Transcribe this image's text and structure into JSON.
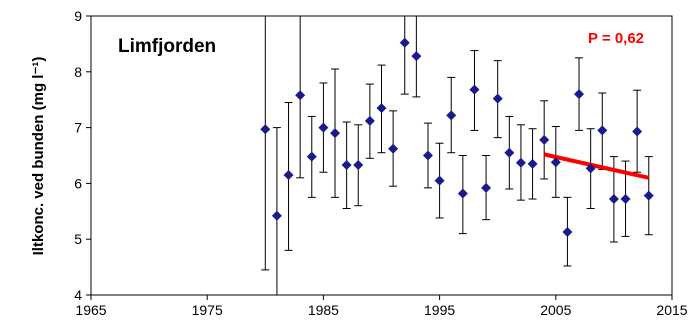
{
  "chart_data": {
    "type": "scatter",
    "title": "Limfjorden",
    "ylabel": "Iltkonc. ved bunden (mg l⁻¹)",
    "xlabel": "",
    "xlim": [
      1965,
      2015
    ],
    "ylim": [
      4,
      9
    ],
    "x_ticks": [
      "1965",
      "1975",
      "1985",
      "1995",
      "2005",
      "2015"
    ],
    "y_ticks": [
      "4",
      "5",
      "6",
      "7",
      "8",
      "9"
    ],
    "grid": false,
    "annotation": "P = 0,62",
    "colors": {
      "marker": "#1a1a8c",
      "trend": "#ff0000",
      "annotation": "#ff0000",
      "axis": "#000000"
    },
    "series": [
      {
        "marker": "diamond",
        "points": [
          {
            "x": 1980,
            "y": 6.97,
            "low": 4.45,
            "high": 9.0
          },
          {
            "x": 1981,
            "y": 5.42,
            "low": 4.0,
            "high": 7.0
          },
          {
            "x": 1982,
            "y": 6.15,
            "low": 4.8,
            "high": 7.45
          },
          {
            "x": 1983,
            "y": 7.58,
            "low": 6.1,
            "high": 9.0
          },
          {
            "x": 1984,
            "y": 6.48,
            "low": 5.75,
            "high": 7.2
          },
          {
            "x": 1985,
            "y": 7.0,
            "low": 6.2,
            "high": 7.8
          },
          {
            "x": 1986,
            "y": 6.9,
            "low": 5.75,
            "high": 8.05
          },
          {
            "x": 1987,
            "y": 6.33,
            "low": 5.55,
            "high": 7.1
          },
          {
            "x": 1988,
            "y": 6.33,
            "low": 5.6,
            "high": 7.05
          },
          {
            "x": 1989,
            "y": 7.12,
            "low": 6.45,
            "high": 7.78
          },
          {
            "x": 1990,
            "y": 7.35,
            "low": 6.55,
            "high": 8.12
          },
          {
            "x": 1991,
            "y": 6.62,
            "low": 5.95,
            "high": 7.3
          },
          {
            "x": 1992,
            "y": 8.52,
            "low": 7.6,
            "high": 9.0
          },
          {
            "x": 1993,
            "y": 8.28,
            "low": 7.55,
            "high": 9.0
          },
          {
            "x": 1994,
            "y": 6.5,
            "low": 5.92,
            "high": 7.08
          },
          {
            "x": 1995,
            "y": 6.05,
            "low": 5.38,
            "high": 6.72
          },
          {
            "x": 1996,
            "y": 7.22,
            "low": 6.55,
            "high": 7.9
          },
          {
            "x": 1997,
            "y": 5.82,
            "low": 5.1,
            "high": 6.5
          },
          {
            "x": 1998,
            "y": 7.68,
            "low": 6.95,
            "high": 8.38
          },
          {
            "x": 1999,
            "y": 5.92,
            "low": 5.35,
            "high": 6.5
          },
          {
            "x": 2000,
            "y": 7.52,
            "low": 6.82,
            "high": 8.2
          },
          {
            "x": 2001,
            "y": 6.55,
            "low": 5.9,
            "high": 7.2
          },
          {
            "x": 2002,
            "y": 6.37,
            "low": 5.7,
            "high": 7.05
          },
          {
            "x": 2003,
            "y": 6.35,
            "low": 5.72,
            "high": 6.98
          },
          {
            "x": 2004,
            "y": 6.78,
            "low": 6.08,
            "high": 7.48
          },
          {
            "x": 2005,
            "y": 6.38,
            "low": 5.75,
            "high": 7.02
          },
          {
            "x": 2006,
            "y": 5.13,
            "low": 4.52,
            "high": 5.75
          },
          {
            "x": 2007,
            "y": 7.6,
            "low": 6.95,
            "high": 8.25
          },
          {
            "x": 2008,
            "y": 6.27,
            "low": 5.55,
            "high": 6.98
          },
          {
            "x": 2009,
            "y": 6.95,
            "low": 6.25,
            "high": 7.62
          },
          {
            "x": 2010,
            "y": 5.72,
            "low": 4.95,
            "high": 6.48
          },
          {
            "x": 2011,
            "y": 5.72,
            "low": 5.05,
            "high": 6.4
          },
          {
            "x": 2012,
            "y": 6.93,
            "low": 6.2,
            "high": 7.67
          },
          {
            "x": 2013,
            "y": 5.78,
            "low": 5.08,
            "high": 6.48
          }
        ]
      }
    ],
    "trend_line": {
      "x": [
        2004,
        2013
      ],
      "y": [
        6.52,
        6.1
      ]
    }
  }
}
